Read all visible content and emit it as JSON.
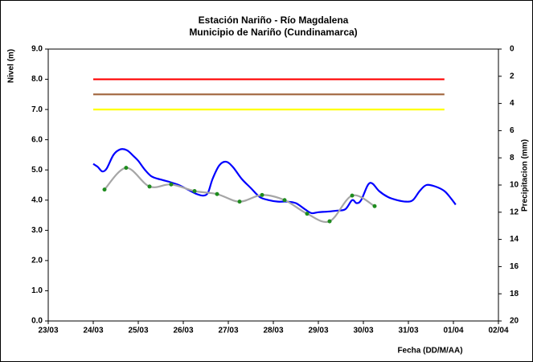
{
  "chart_data": {
    "type": "line",
    "title": [
      "Estación Nariño  - Río Magdalena",
      "Municipio de Nariño (Cundinamarca)"
    ],
    "y_label": "Nivel (m)",
    "y2_label": "Precipitacion (mm)",
    "x_label": "Fecha (DD/M/AA)",
    "xlim": [
      0,
      10
    ],
    "xticks": [
      {
        "value": 0,
        "label": "23/03"
      },
      {
        "value": 1,
        "label": "24/03"
      },
      {
        "value": 2,
        "label": "25/03"
      },
      {
        "value": 3,
        "label": "26/03"
      },
      {
        "value": 4,
        "label": "27/03"
      },
      {
        "value": 5,
        "label": "28/03"
      },
      {
        "value": 6,
        "label": "29/03"
      },
      {
        "value": 7,
        "label": "30/03"
      },
      {
        "value": 8,
        "label": "31/03"
      },
      {
        "value": 9,
        "label": "01/04"
      },
      {
        "value": 10,
        "label": "02/04"
      }
    ],
    "ylim": [
      0,
      9
    ],
    "yticks": [
      {
        "value": 0,
        "label": "0.0"
      },
      {
        "value": 1,
        "label": "1.0"
      },
      {
        "value": 2,
        "label": "2.0"
      },
      {
        "value": 3,
        "label": "3.0"
      },
      {
        "value": 4,
        "label": "4.0"
      },
      {
        "value": 5,
        "label": "5.0"
      },
      {
        "value": 6,
        "label": "6.0"
      },
      {
        "value": 7,
        "label": "7.0"
      },
      {
        "value": 8,
        "label": "8.0"
      },
      {
        "value": 9,
        "label": "9.0"
      }
    ],
    "y2lim": [
      20,
      0
    ],
    "y2ticks": [
      0,
      2,
      4,
      6,
      8,
      10,
      12,
      14,
      16,
      18,
      20
    ],
    "series": [
      {
        "color": "#ff0000",
        "x": [
          1,
          8.8
        ],
        "values": [
          8,
          8
        ]
      },
      {
        "color": "#a0643c",
        "x": [
          1,
          8.8
        ],
        "values": [
          7.5,
          7.5
        ]
      },
      {
        "color": "#ffff00",
        "x": [
          1,
          8.8
        ],
        "values": [
          7,
          7
        ]
      },
      {
        "color": "#0000ff",
        "x": [
          1.0,
          1.1,
          1.2,
          1.3,
          1.45,
          1.6,
          1.75,
          1.9,
          2.0,
          2.15,
          2.3,
          2.5,
          2.7,
          2.9,
          3.1,
          3.3,
          3.45,
          3.55,
          3.65,
          3.8,
          3.95,
          4.1,
          4.3,
          4.5,
          4.7,
          4.9,
          5.1,
          5.3,
          5.5,
          5.7,
          5.85,
          6.0,
          6.2,
          6.4,
          6.6,
          6.75,
          6.85,
          6.95,
          7.1,
          7.2,
          7.35,
          7.55,
          7.75,
          7.95,
          8.1,
          8.25,
          8.4,
          8.6,
          8.8,
          8.95,
          9.05
        ],
        "values": [
          5.2,
          5.1,
          4.95,
          5.05,
          5.5,
          5.68,
          5.65,
          5.45,
          5.3,
          5.0,
          4.78,
          4.68,
          4.6,
          4.5,
          4.35,
          4.2,
          4.15,
          4.25,
          4.7,
          5.15,
          5.27,
          5.1,
          4.7,
          4.4,
          4.1,
          4.0,
          3.95,
          3.95,
          3.9,
          3.7,
          3.57,
          3.6,
          3.62,
          3.65,
          3.7,
          4.0,
          3.9,
          4.0,
          4.5,
          4.55,
          4.3,
          4.1,
          4.0,
          3.95,
          4.0,
          4.3,
          4.5,
          4.45,
          4.3,
          4.05,
          3.85
        ]
      },
      {
        "color": "#a6a6a6",
        "marker_color": "#1e8c1e",
        "x": [
          1.25,
          1.73,
          2.25,
          2.73,
          3.25,
          3.75,
          4.25,
          4.75,
          5.25,
          5.75,
          6.25,
          6.75,
          7.25
        ],
        "values": [
          4.35,
          5.07,
          4.45,
          4.52,
          4.3,
          4.2,
          3.95,
          4.17,
          4.0,
          3.55,
          3.3,
          4.15,
          3.8
        ]
      }
    ]
  }
}
